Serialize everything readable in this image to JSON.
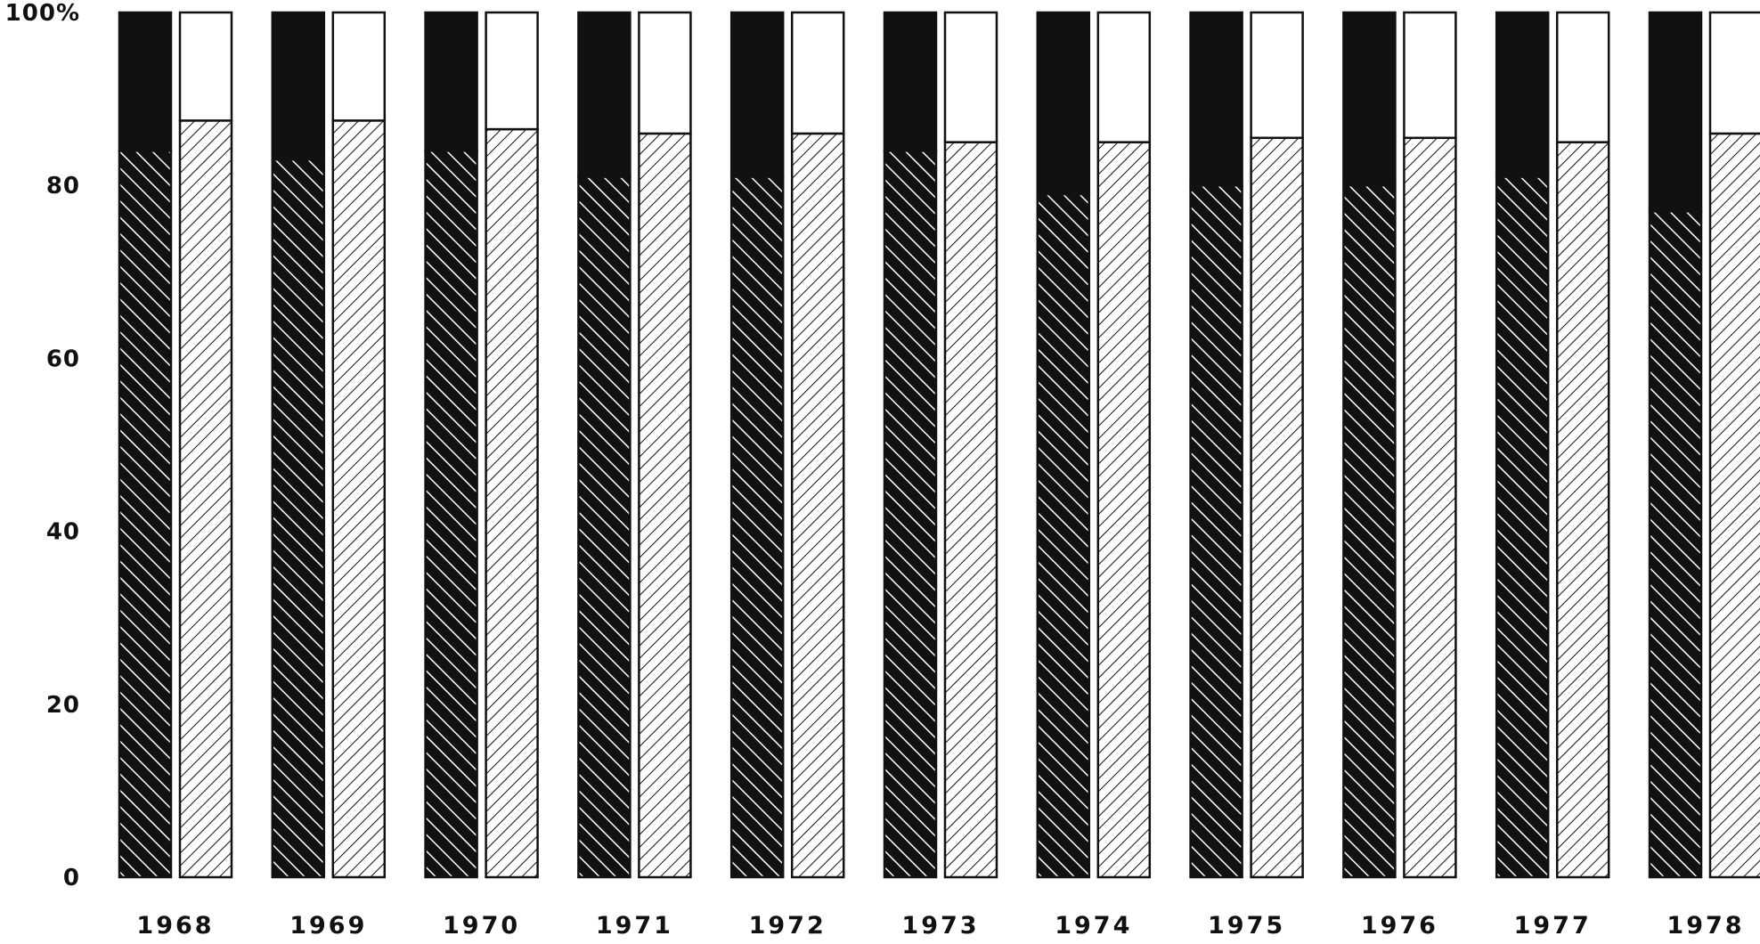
{
  "chart_data": {
    "type": "bar",
    "stacked": true,
    "grouped": true,
    "title": "",
    "xlabel": "",
    "ylabel": "",
    "ylim": [
      0,
      100
    ],
    "yticks": [
      0,
      20,
      40,
      60,
      80,
      100
    ],
    "ytick_labels": [
      "0",
      "20",
      "40",
      "60",
      "80",
      "100%"
    ],
    "grid": false,
    "categories": [
      "1968",
      "1969",
      "1970",
      "1971",
      "1972",
      "1973",
      "1974",
      "1975",
      "1976",
      "1977",
      "1978"
    ],
    "bar_groups": [
      {
        "series": [
          {
            "fill": "back-diagonal-hatch-on-black",
            "values": [
              84,
              83,
              84,
              81,
              81,
              84,
              79,
              80,
              80,
              81,
              77
            ]
          },
          {
            "fill": "solid-black",
            "values": [
              16,
              17,
              16,
              19,
              19,
              16,
              21,
              20,
              20,
              19,
              23
            ]
          }
        ]
      },
      {
        "series": [
          {
            "fill": "forward-diagonal-hatch-on-white",
            "values": [
              87.5,
              87.5,
              86.5,
              86,
              86,
              85,
              85,
              85.5,
              85.5,
              85,
              86
            ]
          },
          {
            "fill": "white",
            "values": [
              12.5,
              12.5,
              13.5,
              14,
              14,
              15,
              15,
              14.5,
              14.5,
              15,
              14
            ]
          }
        ]
      }
    ],
    "colors": {
      "ink": "#111111",
      "paper": "#ffffff"
    }
  }
}
